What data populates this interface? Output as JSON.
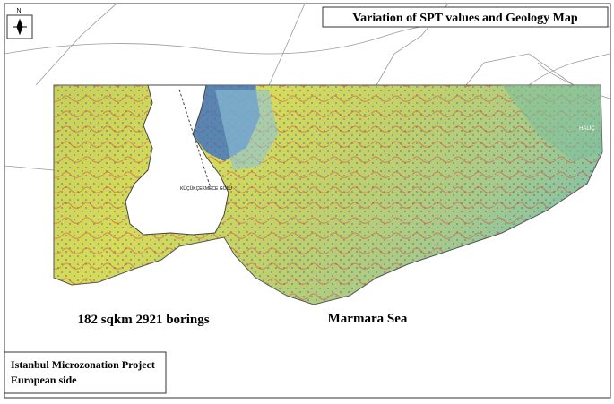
{
  "header": {
    "title": "Variation of SPT values and Geology Map"
  },
  "compass": {
    "label": "N"
  },
  "map_labels": {
    "lake": "KÜÇÜKÇEKMECE GÖLÜ",
    "halic": "HALİÇ",
    "sea": "Marmara Sea",
    "stats": "182 sqkm 2921 borings"
  },
  "footer": {
    "project": "Istanbul Microzonation Project",
    "side": "European side"
  }
}
